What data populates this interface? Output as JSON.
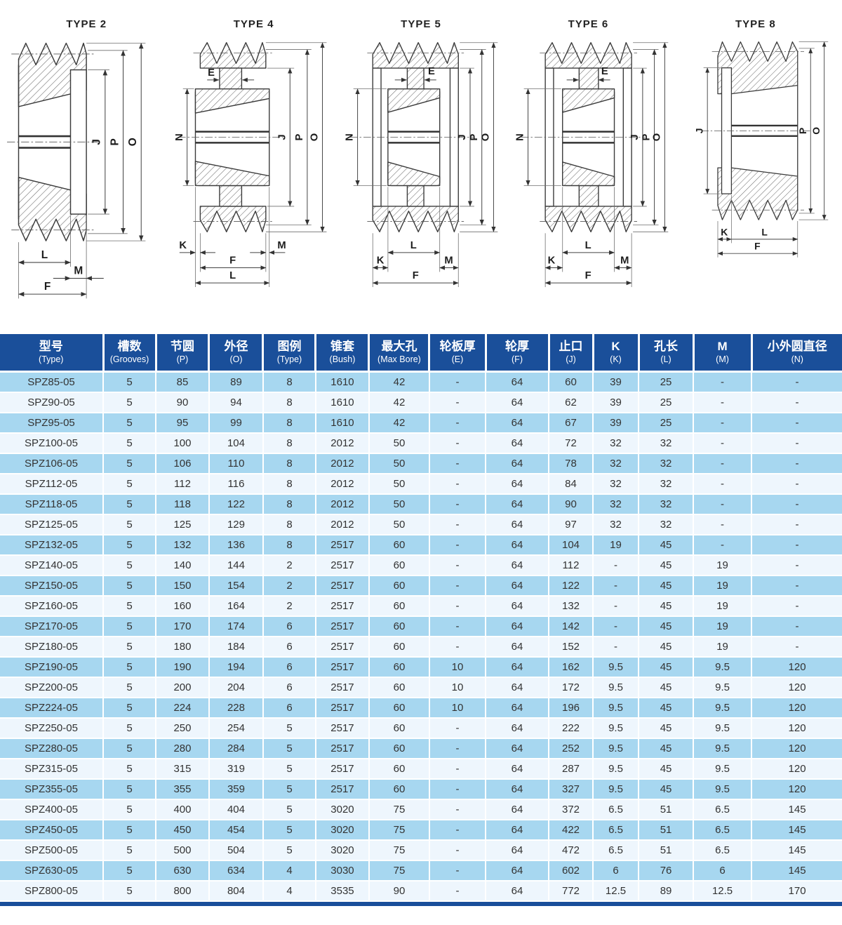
{
  "diagrams": [
    {
      "title": "TYPE 2",
      "dims": {
        "J": "J",
        "P": "P",
        "O": "O",
        "L": "L",
        "M": "M",
        "F": "F"
      }
    },
    {
      "title": "TYPE 4",
      "dims": {
        "E": "E",
        "N": "N",
        "J": "J",
        "P": "P",
        "O": "O",
        "K": "K",
        "M": "M",
        "F": "F",
        "L": "L"
      }
    },
    {
      "title": "TYPE 5",
      "dims": {
        "E": "E",
        "N": "N",
        "J": "J",
        "P": "P",
        "O": "O",
        "L": "L",
        "K": "K",
        "M": "M",
        "F": "F"
      }
    },
    {
      "title": "TYPE 6",
      "dims": {
        "E": "E",
        "N": "N",
        "J": "J",
        "P": "P",
        "O": "O",
        "L": "L",
        "K": "K",
        "M": "M",
        "F": "F"
      }
    },
    {
      "title": "TYPE 8",
      "dims": {
        "J": "J",
        "P": "P",
        "O": "O",
        "K": "K",
        "L": "L",
        "F": "F"
      }
    }
  ],
  "table": {
    "headers": [
      {
        "zh": "型号",
        "en": "(Type)"
      },
      {
        "zh": "槽数",
        "en": "(Grooves)"
      },
      {
        "zh": "节圆",
        "en": "(P)"
      },
      {
        "zh": "外径",
        "en": "(O)"
      },
      {
        "zh": "图例",
        "en": "(Type)"
      },
      {
        "zh": "锥套",
        "en": "(Bush)"
      },
      {
        "zh": "最大孔",
        "en": "(Max Bore)"
      },
      {
        "zh": "轮板厚",
        "en": "(E)"
      },
      {
        "zh": "轮厚",
        "en": "(F)"
      },
      {
        "zh": "止口",
        "en": "(J)"
      },
      {
        "zh": "K",
        "en": "(K)"
      },
      {
        "zh": "孔长",
        "en": "(L)"
      },
      {
        "zh": "M",
        "en": "(M)"
      },
      {
        "zh": "小外圆直径",
        "en": "(N)"
      }
    ],
    "rows": [
      [
        "SPZ85-05",
        "5",
        "85",
        "89",
        "8",
        "1610",
        "42",
        "-",
        "64",
        "60",
        "39",
        "25",
        "-",
        "-"
      ],
      [
        "SPZ90-05",
        "5",
        "90",
        "94",
        "8",
        "1610",
        "42",
        "-",
        "64",
        "62",
        "39",
        "25",
        "-",
        "-"
      ],
      [
        "SPZ95-05",
        "5",
        "95",
        "99",
        "8",
        "1610",
        "42",
        "-",
        "64",
        "67",
        "39",
        "25",
        "-",
        "-"
      ],
      [
        "SPZ100-05",
        "5",
        "100",
        "104",
        "8",
        "2012",
        "50",
        "-",
        "64",
        "72",
        "32",
        "32",
        "-",
        "-"
      ],
      [
        "SPZ106-05",
        "5",
        "106",
        "110",
        "8",
        "2012",
        "50",
        "-",
        "64",
        "78",
        "32",
        "32",
        "-",
        "-"
      ],
      [
        "SPZ112-05",
        "5",
        "112",
        "116",
        "8",
        "2012",
        "50",
        "-",
        "64",
        "84",
        "32",
        "32",
        "-",
        "-"
      ],
      [
        "SPZ118-05",
        "5",
        "118",
        "122",
        "8",
        "2012",
        "50",
        "-",
        "64",
        "90",
        "32",
        "32",
        "-",
        "-"
      ],
      [
        "SPZ125-05",
        "5",
        "125",
        "129",
        "8",
        "2012",
        "50",
        "-",
        "64",
        "97",
        "32",
        "32",
        "-",
        "-"
      ],
      [
        "SPZ132-05",
        "5",
        "132",
        "136",
        "8",
        "2517",
        "60",
        "-",
        "64",
        "104",
        "19",
        "45",
        "-",
        "-"
      ],
      [
        "SPZ140-05",
        "5",
        "140",
        "144",
        "2",
        "2517",
        "60",
        "-",
        "64",
        "112",
        "-",
        "45",
        "19",
        "-"
      ],
      [
        "SPZ150-05",
        "5",
        "150",
        "154",
        "2",
        "2517",
        "60",
        "-",
        "64",
        "122",
        "-",
        "45",
        "19",
        "-"
      ],
      [
        "SPZ160-05",
        "5",
        "160",
        "164",
        "2",
        "2517",
        "60",
        "-",
        "64",
        "132",
        "-",
        "45",
        "19",
        "-"
      ],
      [
        "SPZ170-05",
        "5",
        "170",
        "174",
        "6",
        "2517",
        "60",
        "-",
        "64",
        "142",
        "-",
        "45",
        "19",
        "-"
      ],
      [
        "SPZ180-05",
        "5",
        "180",
        "184",
        "6",
        "2517",
        "60",
        "-",
        "64",
        "152",
        "-",
        "45",
        "19",
        "-"
      ],
      [
        "SPZ190-05",
        "5",
        "190",
        "194",
        "6",
        "2517",
        "60",
        "10",
        "64",
        "162",
        "9.5",
        "45",
        "9.5",
        "120"
      ],
      [
        "SPZ200-05",
        "5",
        "200",
        "204",
        "6",
        "2517",
        "60",
        "10",
        "64",
        "172",
        "9.5",
        "45",
        "9.5",
        "120"
      ],
      [
        "SPZ224-05",
        "5",
        "224",
        "228",
        "6",
        "2517",
        "60",
        "10",
        "64",
        "196",
        "9.5",
        "45",
        "9.5",
        "120"
      ],
      [
        "SPZ250-05",
        "5",
        "250",
        "254",
        "5",
        "2517",
        "60",
        "-",
        "64",
        "222",
        "9.5",
        "45",
        "9.5",
        "120"
      ],
      [
        "SPZ280-05",
        "5",
        "280",
        "284",
        "5",
        "2517",
        "60",
        "-",
        "64",
        "252",
        "9.5",
        "45",
        "9.5",
        "120"
      ],
      [
        "SPZ315-05",
        "5",
        "315",
        "319",
        "5",
        "2517",
        "60",
        "-",
        "64",
        "287",
        "9.5",
        "45",
        "9.5",
        "120"
      ],
      [
        "SPZ355-05",
        "5",
        "355",
        "359",
        "5",
        "2517",
        "60",
        "-",
        "64",
        "327",
        "9.5",
        "45",
        "9.5",
        "120"
      ],
      [
        "SPZ400-05",
        "5",
        "400",
        "404",
        "5",
        "3020",
        "75",
        "-",
        "64",
        "372",
        "6.5",
        "51",
        "6.5",
        "145"
      ],
      [
        "SPZ450-05",
        "5",
        "450",
        "454",
        "5",
        "3020",
        "75",
        "-",
        "64",
        "422",
        "6.5",
        "51",
        "6.5",
        "145"
      ],
      [
        "SPZ500-05",
        "5",
        "500",
        "504",
        "5",
        "3020",
        "75",
        "-",
        "64",
        "472",
        "6.5",
        "51",
        "6.5",
        "145"
      ],
      [
        "SPZ630-05",
        "5",
        "630",
        "634",
        "4",
        "3030",
        "75",
        "-",
        "64",
        "602",
        "6",
        "76",
        "6",
        "145"
      ],
      [
        "SPZ800-05",
        "5",
        "800",
        "804",
        "4",
        "3535",
        "90",
        "-",
        "64",
        "772",
        "12.5",
        "89",
        "12.5",
        "170"
      ]
    ]
  },
  "colors": {
    "header_bg": "#1a4f9a",
    "row_alt_blue": "#a7d7f0",
    "row_alt_light": "#eef6fd",
    "bottom_bar": "#1a4f9a"
  }
}
